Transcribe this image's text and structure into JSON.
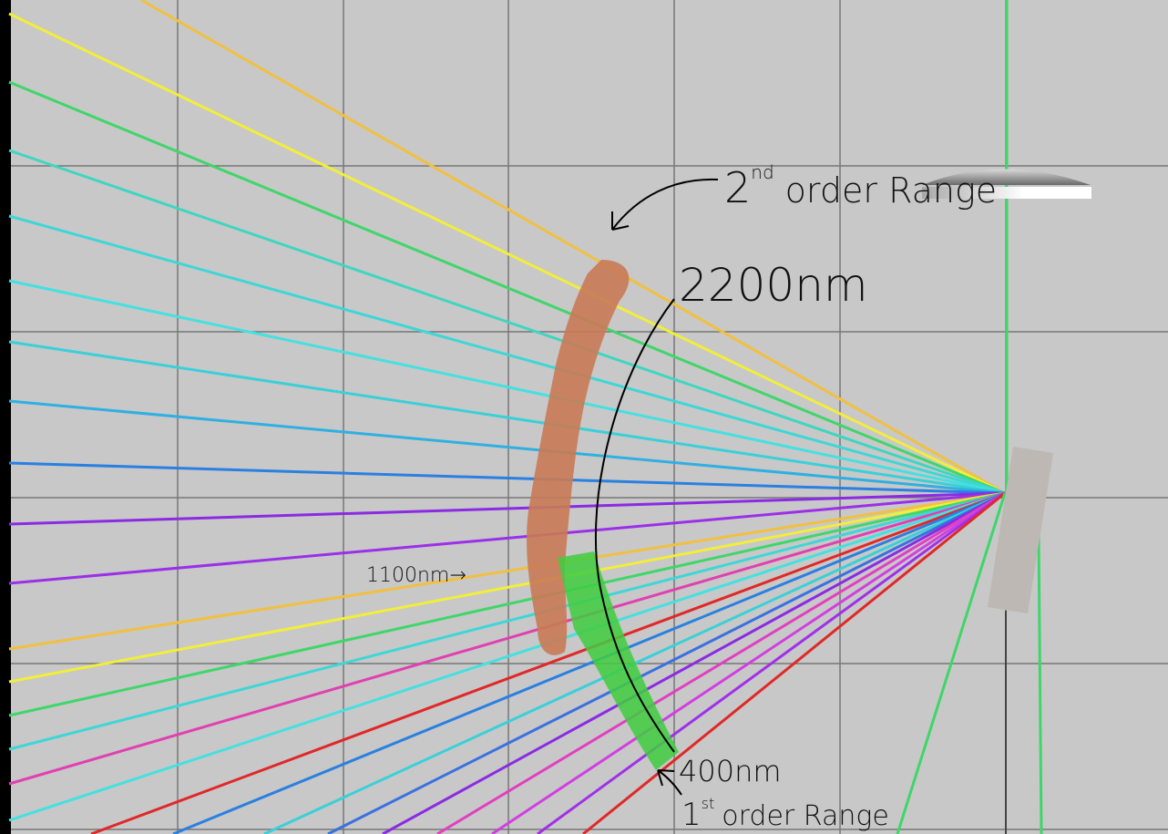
{
  "annotations": {
    "second_order": {
      "number": "2",
      "suffix": "nd",
      "rest": "order Range"
    },
    "upper_limit": "2200nm",
    "middle_marker": "1100nm→",
    "lower_limit": "400nm",
    "first_order": {
      "number": "1",
      "suffix": "st",
      "rest": "order Range"
    }
  }
}
